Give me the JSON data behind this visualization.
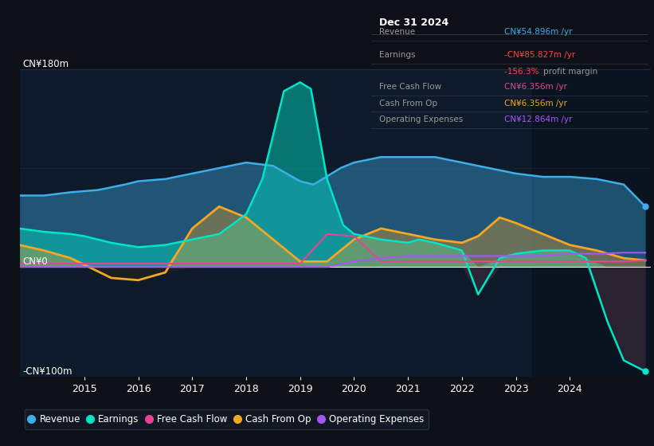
{
  "bg_color": "#0d1117",
  "plot_bg_color": "#0d1a2a",
  "ylabel_top": "CN¥180m",
  "ylabel_zero": "CN¥0",
  "ylabel_bottom": "-CN¥100m",
  "ymax": 180,
  "ymin": -100,
  "xmin": 2013.8,
  "xmax": 2025.5,
  "xticks": [
    2015,
    2016,
    2017,
    2018,
    2019,
    2020,
    2021,
    2022,
    2023,
    2024
  ],
  "colors": {
    "revenue": "#3daee9",
    "earnings": "#00e5c8",
    "free_cash_flow": "#e84393",
    "cash_from_op": "#f5a623",
    "operating_expenses": "#a855f7"
  },
  "info_box": {
    "date": "Dec 31 2024",
    "revenue_label": "Revenue",
    "revenue_value": "CN¥54.896m /yr",
    "revenue_color": "#3daee9",
    "earnings_label": "Earnings",
    "earnings_value": "-CN¥85.827m /yr",
    "earnings_color": "#ff4444",
    "margin_value": "-156.3%",
    "margin_color": "#ff4444",
    "margin_text": "profit margin",
    "fcf_label": "Free Cash Flow",
    "fcf_value": "CN¥6.356m /yr",
    "fcf_color": "#e84393",
    "cashop_label": "Cash From Op",
    "cashop_value": "CN¥6.356m /yr",
    "cashop_color": "#f5a623",
    "opex_label": "Operating Expenses",
    "opex_value": "CN¥12.864m /yr",
    "opex_color": "#a855f7"
  },
  "revenue": {
    "x": [
      2013.8,
      2014.25,
      2014.75,
      2015.25,
      2015.75,
      2016.0,
      2016.5,
      2017.0,
      2017.5,
      2018.0,
      2018.5,
      2019.0,
      2019.25,
      2019.75,
      2020.0,
      2020.5,
      2021.0,
      2021.5,
      2022.0,
      2022.5,
      2023.0,
      2023.5,
      2024.0,
      2024.5,
      2025.0,
      2025.4
    ],
    "y": [
      65,
      65,
      68,
      70,
      75,
      78,
      80,
      85,
      90,
      95,
      92,
      78,
      75,
      90,
      95,
      100,
      100,
      100,
      95,
      90,
      85,
      82,
      82,
      80,
      75,
      55
    ]
  },
  "earnings": {
    "x": [
      2013.8,
      2014.25,
      2014.75,
      2015.0,
      2015.5,
      2016.0,
      2016.5,
      2017.0,
      2017.5,
      2018.0,
      2018.3,
      2018.7,
      2019.0,
      2019.2,
      2019.5,
      2019.8,
      2020.0,
      2020.5,
      2021.0,
      2021.2,
      2021.5,
      2022.0,
      2022.3,
      2022.7,
      2023.0,
      2023.5,
      2024.0,
      2024.3,
      2024.7,
      2025.0,
      2025.4
    ],
    "y": [
      35,
      32,
      30,
      28,
      22,
      18,
      20,
      25,
      30,
      48,
      80,
      160,
      168,
      162,
      80,
      38,
      30,
      25,
      22,
      25,
      22,
      15,
      -25,
      8,
      12,
      15,
      15,
      8,
      -50,
      -85,
      -95
    ]
  },
  "free_cash_flow": {
    "x": [
      2013.8,
      2015.0,
      2016.0,
      2017.0,
      2018.0,
      2019.0,
      2019.5,
      2020.0,
      2020.5,
      2021.0,
      2021.5,
      2022.0,
      2022.5,
      2023.0,
      2023.5,
      2024.0,
      2024.5,
      2025.0,
      2025.4
    ],
    "y": [
      3,
      3,
      3,
      3,
      3,
      3,
      30,
      28,
      5,
      5,
      5,
      5,
      5,
      5,
      5,
      5,
      5,
      5,
      6
    ]
  },
  "cash_from_op": {
    "x": [
      2013.8,
      2014.25,
      2014.75,
      2015.0,
      2015.5,
      2016.0,
      2016.5,
      2017.0,
      2017.5,
      2018.0,
      2018.5,
      2019.0,
      2019.5,
      2020.0,
      2020.5,
      2021.0,
      2021.5,
      2022.0,
      2022.3,
      2022.7,
      2023.0,
      2023.5,
      2024.0,
      2024.5,
      2025.0,
      2025.4
    ],
    "y": [
      20,
      15,
      8,
      2,
      -10,
      -12,
      -5,
      35,
      55,
      45,
      25,
      5,
      5,
      25,
      35,
      30,
      25,
      22,
      28,
      45,
      40,
      30,
      20,
      15,
      8,
      6
    ]
  },
  "operating_expenses": {
    "x": [
      2013.8,
      2015.0,
      2016.0,
      2017.0,
      2018.0,
      2019.0,
      2019.5,
      2020.0,
      2020.5,
      2021.0,
      2021.5,
      2022.0,
      2022.5,
      2023.0,
      2023.5,
      2024.0,
      2024.5,
      2025.0,
      2025.4
    ],
    "y": [
      0,
      0,
      0,
      0,
      0,
      0,
      0,
      5,
      8,
      10,
      10,
      10,
      10,
      10,
      10,
      12,
      12,
      13,
      13
    ]
  }
}
